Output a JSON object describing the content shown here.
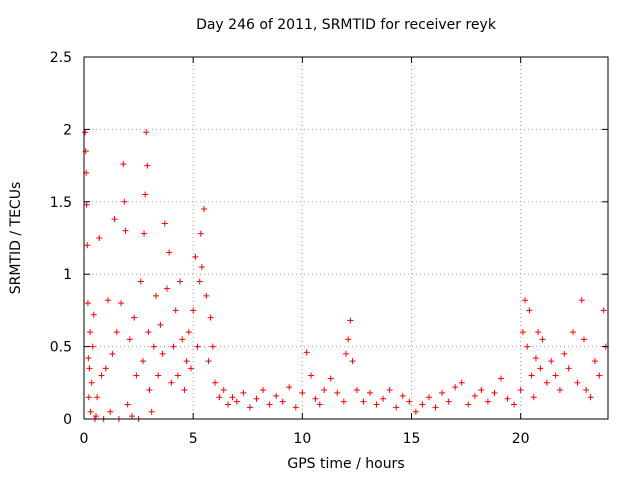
{
  "chart_data": {
    "type": "scatter",
    "title": "Day 246 of 2011, SRMTID for receiver reyk",
    "xlabel": "GPS time / hours",
    "ylabel": "SRMTID / TECUs",
    "xlim": [
      0,
      24
    ],
    "ylim": [
      0,
      2.5
    ],
    "xticks": [
      0,
      5,
      10,
      15,
      20
    ],
    "yticks": [
      0,
      0.5,
      1,
      1.5,
      2,
      2.5
    ],
    "ytick_labels": [
      "0",
      "0.5",
      "1",
      "1.5",
      "2",
      "2.5"
    ],
    "grid": true,
    "marker": "+",
    "color": "#ff0000",
    "series": [
      {
        "x": [
          0.05,
          0.08,
          0.1,
          0.12,
          0.15,
          0.18,
          0.2,
          0.22,
          0.25,
          0.28,
          0.3,
          0.35,
          0.4,
          0.45,
          0.5,
          0.55,
          0.6,
          0.7,
          0.8,
          0.9,
          1.0,
          1.1,
          1.2,
          1.3,
          1.4,
          1.5,
          1.6,
          1.7,
          1.8,
          1.85,
          1.9,
          2.0,
          2.1,
          2.2,
          2.3,
          2.4,
          2.5,
          2.6,
          2.7,
          2.75,
          2.8,
          2.85,
          2.9,
          2.95,
          3.0,
          3.1,
          3.2,
          3.3,
          3.4,
          3.5,
          3.6,
          3.7,
          3.8,
          3.9,
          4.0,
          4.1,
          4.2,
          4.3,
          4.4,
          4.5,
          4.6,
          4.7,
          4.8,
          4.9,
          5.0,
          5.1,
          5.2,
          5.3,
          5.35,
          5.4,
          5.5,
          5.6,
          5.7,
          5.8,
          5.9,
          6.0,
          6.2,
          6.4,
          6.6,
          6.8,
          7.0,
          7.3,
          7.6,
          7.9,
          8.2,
          8.5,
          8.8,
          9.1,
          9.4,
          9.7,
          10.0,
          10.2,
          10.4,
          10.6,
          10.8,
          11.0,
          11.3,
          11.6,
          11.9,
          12.0,
          12.1,
          12.2,
          12.3,
          12.5,
          12.8,
          13.1,
          13.4,
          13.7,
          14.0,
          14.3,
          14.6,
          14.9,
          15.2,
          15.5,
          15.8,
          16.1,
          16.4,
          16.7,
          17.0,
          17.3,
          17.6,
          17.9,
          18.2,
          18.5,
          18.8,
          19.1,
          19.4,
          19.7,
          20.0,
          20.1,
          20.2,
          20.3,
          20.4,
          20.5,
          20.6,
          20.7,
          20.8,
          20.9,
          21.0,
          21.2,
          21.4,
          21.6,
          21.8,
          22.0,
          22.2,
          22.4,
          22.6,
          22.8,
          22.9,
          23.0,
          23.2,
          23.4,
          23.6,
          23.8,
          23.9
        ],
        "y": [
          1.98,
          1.85,
          1.7,
          1.48,
          1.2,
          0.8,
          0.42,
          0.15,
          0.35,
          0.6,
          0.05,
          0.25,
          0.5,
          0.72,
          0.0,
          0.02,
          0.15,
          1.25,
          0.3,
          0.0,
          0.35,
          0.82,
          0.05,
          0.45,
          1.38,
          0.6,
          0.0,
          0.8,
          1.76,
          1.5,
          1.3,
          0.1,
          0.55,
          0.02,
          0.7,
          0.3,
          0.0,
          0.95,
          0.4,
          1.28,
          1.55,
          1.98,
          1.75,
          0.6,
          0.2,
          0.05,
          0.5,
          0.85,
          0.3,
          0.65,
          0.45,
          1.35,
          0.9,
          1.15,
          0.25,
          0.5,
          0.75,
          0.3,
          0.95,
          0.55,
          0.2,
          0.4,
          0.6,
          0.35,
          0.75,
          1.12,
          0.5,
          0.95,
          1.28,
          1.05,
          1.45,
          0.85,
          0.4,
          0.7,
          0.5,
          0.25,
          0.15,
          0.2,
          0.1,
          0.15,
          0.12,
          0.18,
          0.08,
          0.14,
          0.2,
          0.1,
          0.16,
          0.12,
          0.22,
          0.08,
          0.18,
          0.46,
          0.3,
          0.14,
          0.1,
          0.2,
          0.28,
          0.18,
          0.12,
          0.45,
          0.55,
          0.68,
          0.4,
          0.2,
          0.12,
          0.18,
          0.1,
          0.14,
          0.2,
          0.08,
          0.16,
          0.12,
          0.05,
          0.1,
          0.15,
          0.08,
          0.18,
          0.12,
          0.22,
          0.25,
          0.1,
          0.16,
          0.2,
          0.12,
          0.18,
          0.28,
          0.14,
          0.1,
          0.2,
          0.6,
          0.82,
          0.5,
          0.75,
          0.3,
          0.15,
          0.42,
          0.6,
          0.35,
          0.55,
          0.25,
          0.4,
          0.3,
          0.2,
          0.45,
          0.35,
          0.6,
          0.25,
          0.82,
          0.55,
          0.2,
          0.15,
          0.4,
          0.3,
          0.75,
          0.5
        ]
      }
    ]
  }
}
